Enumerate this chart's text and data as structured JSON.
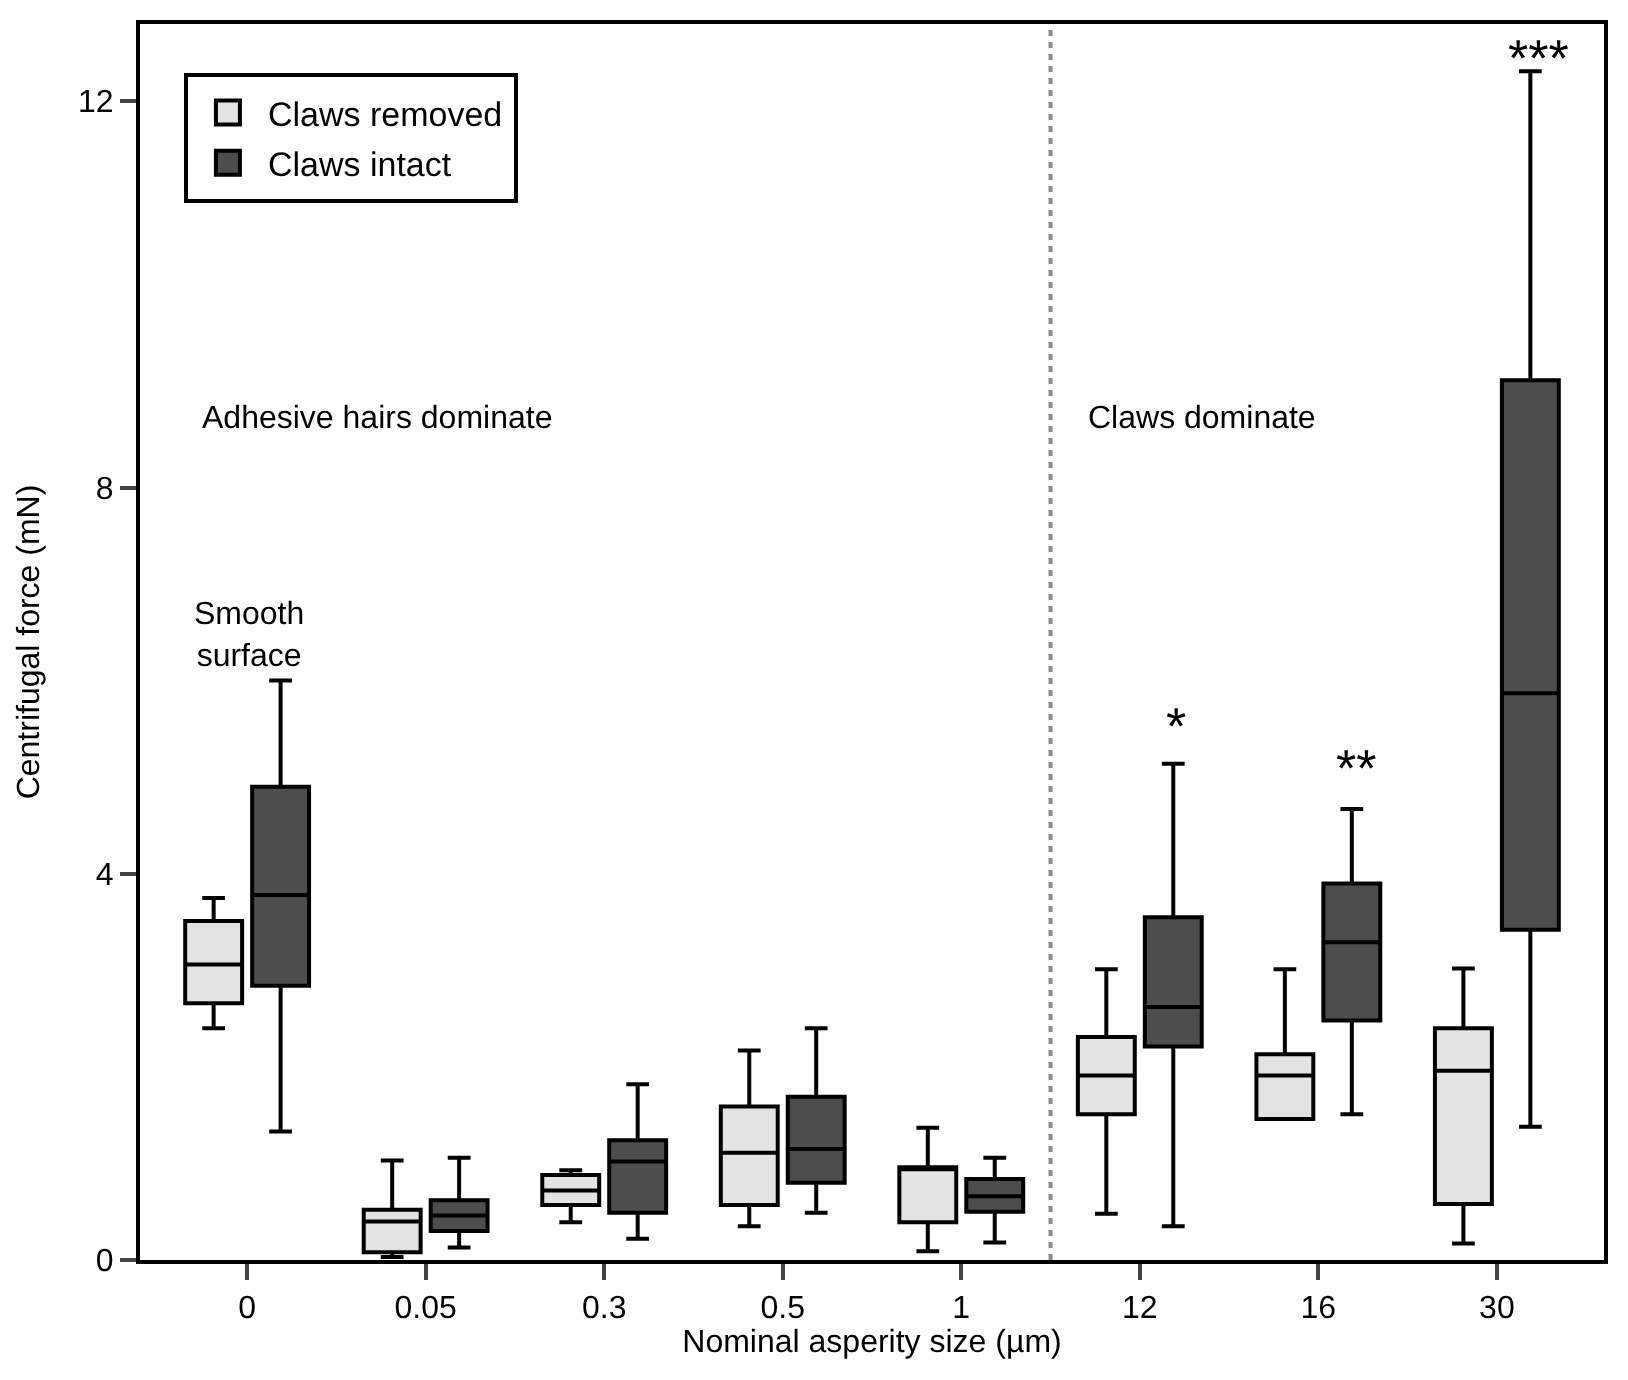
{
  "chart_data": {
    "type": "box",
    "xlabel": "Nominal asperity size (µm)",
    "ylabel": "Centrifugal force (mN)",
    "categories": [
      "0",
      "0.05",
      "0.3",
      "0.5",
      "1",
      "12",
      "16",
      "30"
    ],
    "ylim": [
      0,
      12.8
    ],
    "yticks": [
      0,
      4,
      8,
      12
    ],
    "legend": "top left",
    "series": [
      {
        "name": "Claws removed",
        "color": "#e3e3e3",
        "boxes": [
          {
            "low": 2.4,
            "q1": 2.66,
            "median": 3.06,
            "q3": 3.51,
            "high": 3.75
          },
          {
            "low": 0.03,
            "q1": 0.08,
            "median": 0.4,
            "q3": 0.52,
            "high": 1.03
          },
          {
            "low": 0.39,
            "q1": 0.57,
            "median": 0.72,
            "q3": 0.88,
            "high": 0.93
          },
          {
            "low": 0.35,
            "q1": 0.57,
            "median": 1.11,
            "q3": 1.59,
            "high": 2.17
          },
          {
            "low": 0.09,
            "q1": 0.39,
            "median": 0.94,
            "q3": 0.96,
            "high": 1.37
          },
          {
            "low": 0.48,
            "q1": 1.51,
            "median": 1.91,
            "q3": 2.31,
            "high": 3.01
          },
          {
            "low": 1.46,
            "q1": 1.46,
            "median": 1.91,
            "q3": 2.13,
            "high": 3.01
          },
          {
            "low": 0.17,
            "q1": 0.58,
            "median": 1.96,
            "q3": 2.4,
            "high": 3.02
          }
        ]
      },
      {
        "name": "Claws intact",
        "color": "#4d4d4d",
        "boxes": [
          {
            "low": 1.33,
            "q1": 2.84,
            "median": 3.78,
            "q3": 4.9,
            "high": 6.0
          },
          {
            "low": 0.13,
            "q1": 0.3,
            "median": 0.46,
            "q3": 0.62,
            "high": 1.06
          },
          {
            "low": 0.22,
            "q1": 0.49,
            "median": 1.02,
            "q3": 1.24,
            "high": 1.82
          },
          {
            "low": 0.49,
            "q1": 0.8,
            "median": 1.15,
            "q3": 1.69,
            "high": 2.4
          },
          {
            "low": 0.18,
            "q1": 0.5,
            "median": 0.66,
            "q3": 0.84,
            "high": 1.06
          },
          {
            "low": 0.35,
            "q1": 2.21,
            "median": 2.62,
            "q3": 3.55,
            "high": 5.14
          },
          {
            "low": 1.51,
            "q1": 2.48,
            "median": 3.29,
            "q3": 3.9,
            "high": 4.67
          },
          {
            "low": 1.38,
            "q1": 3.42,
            "median": 5.87,
            "q3": 9.11,
            "high": 12.31
          }
        ]
      }
    ],
    "annotations": [
      "Adhesive hairs dominate",
      "Claws dominate",
      "Smooth\nsurface",
      "*",
      "**",
      "***"
    ]
  }
}
